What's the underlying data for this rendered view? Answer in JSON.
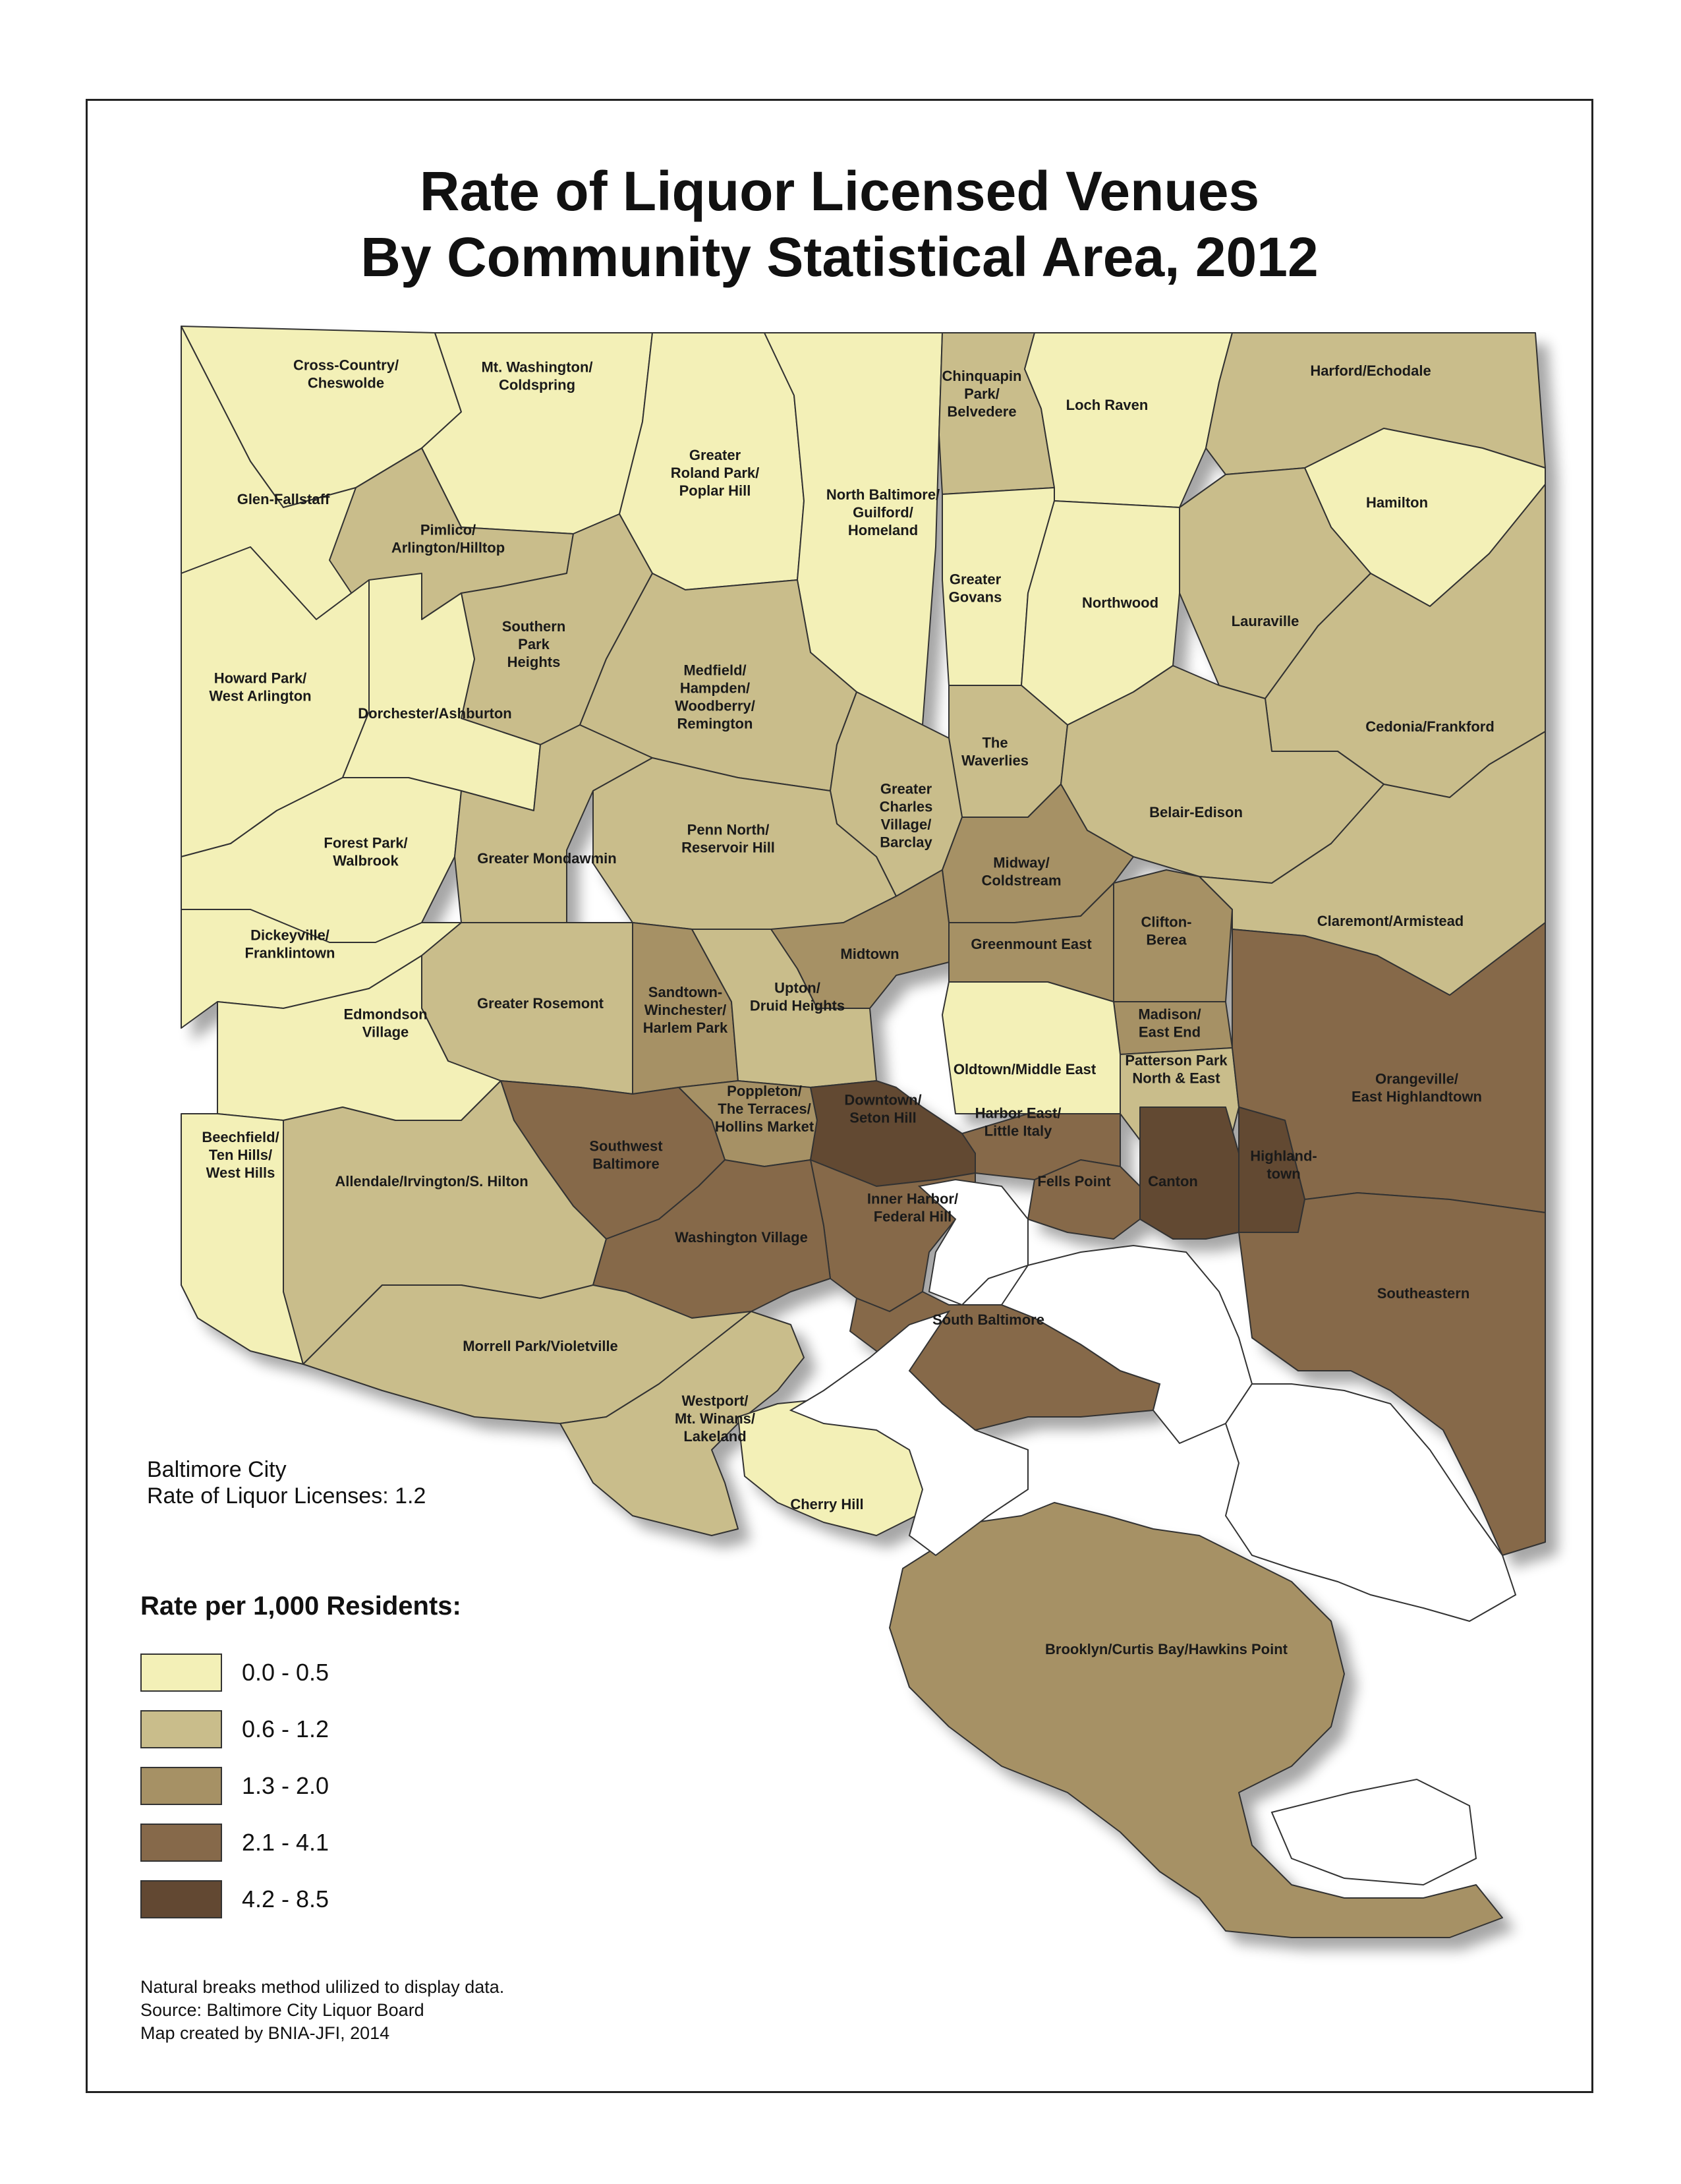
{
  "title": {
    "line1": "Rate of Liquor Licensed Venues",
    "line2": "By Community Statistical Area, 2012"
  },
  "colors": {
    "class1": "#f3f0b7",
    "class2": "#c9bd8b",
    "class3": "#a69165",
    "class4": "#86694a",
    "class5": "#624832",
    "water": "#ffffff",
    "outline": "#333333"
  },
  "city_summary": {
    "line1": "Baltimore City",
    "line2": "Rate of Liquor Licenses: 1.2"
  },
  "legend": {
    "title": "Rate per 1,000 Residents:",
    "classes": [
      {
        "label": "0.0 - 0.5",
        "color": "#f3f0b7"
      },
      {
        "label": "0.6 - 1.2",
        "color": "#c9bd8b"
      },
      {
        "label": "1.3 - 2.0",
        "color": "#a69165"
      },
      {
        "label": "2.1 - 4.1",
        "color": "#86694a"
      },
      {
        "label": "4.2 - 8.5",
        "color": "#624832"
      }
    ]
  },
  "notes": {
    "line1": "Natural breaks method ulilized to display data.",
    "line2": "Source: Baltimore City Liquor Board",
    "line3": "Map created by BNIA-JFI, 2014"
  },
  "areas": [
    {
      "id": "cross-country",
      "lines": [
        "Cross-Country/",
        "Cheswolde"
      ],
      "class": 1
    },
    {
      "id": "mt-washington",
      "lines": [
        "Mt. Washington/",
        "Coldspring"
      ],
      "class": 1
    },
    {
      "id": "roland-park",
      "lines": [
        "Greater",
        "Roland Park/",
        "Poplar Hill"
      ],
      "class": 1
    },
    {
      "id": "north-baltimore",
      "lines": [
        "North Baltimore/",
        "Guilford/",
        "Homeland"
      ],
      "class": 1
    },
    {
      "id": "chinquapin",
      "lines": [
        "Chinquapin",
        "Park/",
        "Belvedere"
      ],
      "class": 2
    },
    {
      "id": "loch-raven",
      "lines": [
        "Loch Raven"
      ],
      "class": 1
    },
    {
      "id": "harford",
      "lines": [
        "Harford/Echodale"
      ],
      "class": 2
    },
    {
      "id": "hamilton",
      "lines": [
        "Hamilton"
      ],
      "class": 1
    },
    {
      "id": "glen-fallstaff",
      "lines": [
        "Glen-Fallstaff"
      ],
      "class": 1
    },
    {
      "id": "pimlico",
      "lines": [
        "Pimlico/",
        "Arlington/Hilltop"
      ],
      "class": 2
    },
    {
      "id": "southern-park-heights",
      "lines": [
        "Southern",
        "Park",
        "Heights"
      ],
      "class": 2
    },
    {
      "id": "greater-govans",
      "lines": [
        "Greater",
        "Govans"
      ],
      "class": 1
    },
    {
      "id": "northwood",
      "lines": [
        "Northwood"
      ],
      "class": 1
    },
    {
      "id": "lauraville",
      "lines": [
        "Lauraville"
      ],
      "class": 2
    },
    {
      "id": "howard-park",
      "lines": [
        "Howard Park/",
        "West Arlington"
      ],
      "class": 1
    },
    {
      "id": "dorchester",
      "lines": [
        "Dorchester/Ashburton"
      ],
      "class": 1
    },
    {
      "id": "medfield",
      "lines": [
        "Medfield/",
        "Hampden/",
        "Woodberry/",
        "Remington"
      ],
      "class": 2
    },
    {
      "id": "waverlies",
      "lines": [
        "The",
        "Waverlies"
      ],
      "class": 2
    },
    {
      "id": "cedonia",
      "lines": [
        "Cedonia/Frankford"
      ],
      "class": 2
    },
    {
      "id": "greater-charles-village",
      "lines": [
        "Greater",
        "Charles",
        "Village/",
        "Barclay"
      ],
      "class": 2
    },
    {
      "id": "belair-edison",
      "lines": [
        "Belair-Edison"
      ],
      "class": 2
    },
    {
      "id": "forest-park",
      "lines": [
        "Forest Park/",
        "Walbrook"
      ],
      "class": 1
    },
    {
      "id": "greater-mondawmin",
      "lines": [
        "Greater Mondawmin"
      ],
      "class": 2
    },
    {
      "id": "penn-north",
      "lines": [
        "Penn North/",
        "Reservoir Hill"
      ],
      "class": 2
    },
    {
      "id": "midway",
      "lines": [
        "Midway/",
        "Coldstream"
      ],
      "class": 3
    },
    {
      "id": "dickeyville",
      "lines": [
        "Dickeyville/",
        "Franklintown"
      ],
      "class": 1
    },
    {
      "id": "clifton-berea",
      "lines": [
        "Clifton-",
        "Berea"
      ],
      "class": 3
    },
    {
      "id": "claremont",
      "lines": [
        "Claremont/Armistead"
      ],
      "class": 2
    },
    {
      "id": "midtown",
      "lines": [
        "Midtown"
      ],
      "class": 3
    },
    {
      "id": "greenmount-east",
      "lines": [
        "Greenmount East"
      ],
      "class": 3
    },
    {
      "id": "greater-rosemont",
      "lines": [
        "Greater Rosemont"
      ],
      "class": 2
    },
    {
      "id": "sandtown",
      "lines": [
        "Sandtown-",
        "Winchester/",
        "Harlem Park"
      ],
      "class": 3
    },
    {
      "id": "upton",
      "lines": [
        "Upton/",
        "Druid Heights"
      ],
      "class": 2
    },
    {
      "id": "edmondson",
      "lines": [
        "Edmondson",
        "Village"
      ],
      "class": 1
    },
    {
      "id": "madison",
      "lines": [
        "Madison/",
        "East End"
      ],
      "class": 3
    },
    {
      "id": "oldtown",
      "lines": [
        "Oldtown/Middle East"
      ],
      "class": 1
    },
    {
      "id": "patterson-park",
      "lines": [
        "Patterson Park",
        "North & East"
      ],
      "class": 2
    },
    {
      "id": "orangeville",
      "lines": [
        "Orangeville/",
        "East Highlandtown"
      ],
      "class": 4
    },
    {
      "id": "poppleton",
      "lines": [
        "Poppleton/",
        "The Terraces/",
        "Hollins Market"
      ],
      "class": 3
    },
    {
      "id": "downtown",
      "lines": [
        "Downtown/",
        "Seton Hill"
      ],
      "class": 5
    },
    {
      "id": "harbor-east",
      "lines": [
        "Harbor East/",
        "Little Italy"
      ],
      "class": 4
    },
    {
      "id": "beechfield",
      "lines": [
        "Beechfield/",
        "Ten Hills/",
        "West Hills"
      ],
      "class": 1
    },
    {
      "id": "southwest-baltimore",
      "lines": [
        "Southwest",
        "Baltimore"
      ],
      "class": 4
    },
    {
      "id": "allendale",
      "lines": [
        "Allendale/Irvington/S. Hilton"
      ],
      "class": 2
    },
    {
      "id": "fells-point",
      "lines": [
        "Fells Point"
      ],
      "class": 4
    },
    {
      "id": "canton",
      "lines": [
        "Canton"
      ],
      "class": 5
    },
    {
      "id": "highlandtown",
      "lines": [
        "Highland-",
        "town"
      ],
      "class": 5
    },
    {
      "id": "inner-harbor",
      "lines": [
        "Inner Harbor/",
        "Federal Hill"
      ],
      "class": 4
    },
    {
      "id": "washington-village",
      "lines": [
        "Washington Village"
      ],
      "class": 4
    },
    {
      "id": "southeastern",
      "lines": [
        "Southeastern"
      ],
      "class": 4
    },
    {
      "id": "south-baltimore",
      "lines": [
        "South Baltimore"
      ],
      "class": 4
    },
    {
      "id": "morrell-park",
      "lines": [
        "Morrell Park/Violetville"
      ],
      "class": 2
    },
    {
      "id": "westport",
      "lines": [
        "Westport/",
        "Mt. Winans/",
        "Lakeland"
      ],
      "class": 2
    },
    {
      "id": "cherry-hill",
      "lines": [
        "Cherry Hill"
      ],
      "class": 1
    },
    {
      "id": "brooklyn",
      "lines": [
        "Brooklyn/Curtis Bay/Hawkins Point"
      ],
      "class": 3
    }
  ]
}
